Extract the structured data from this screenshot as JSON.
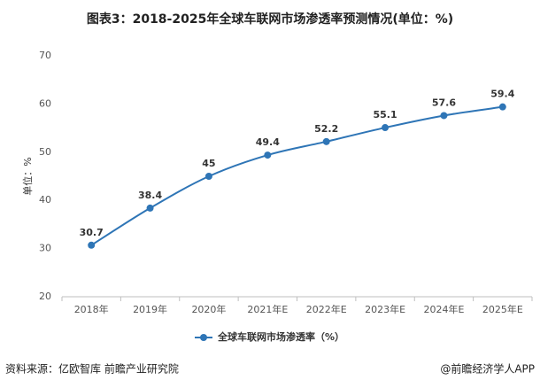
{
  "chart_data": {
    "type": "line",
    "title": "图表3：2018-2025年全球车联网市场渗透率预测情况(单位：%)",
    "y_label": "单位：%",
    "categories": [
      "2018年",
      "2019年",
      "2020年",
      "2021年E",
      "2022年E",
      "2023年E",
      "2024年E",
      "2025年E"
    ],
    "series": [
      {
        "name": "全球车联网市场渗透率（%）",
        "color": "#2e75b6",
        "values": [
          30.7,
          38.4,
          45,
          49.4,
          52.2,
          55.1,
          57.6,
          59.4
        ]
      }
    ],
    "ylim": [
      20,
      70
    ],
    "yticks": [
      20,
      30,
      40,
      50,
      60,
      70
    ],
    "grid": false,
    "legend": "bottom"
  },
  "footer": {
    "source": "资料来源：亿欧智库 前瞻产业研究院",
    "credit": "@前瞻经济学人APP"
  }
}
